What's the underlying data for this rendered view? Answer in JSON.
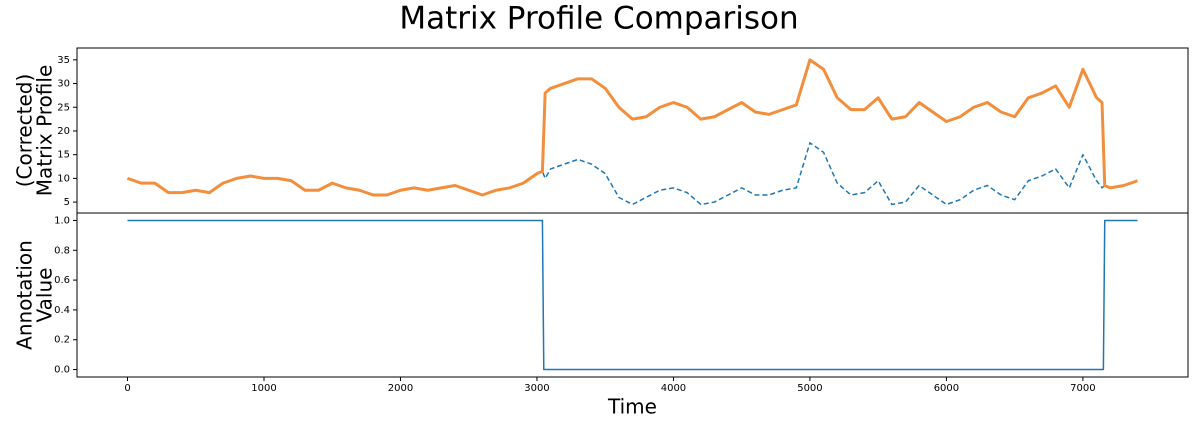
{
  "chart_data": [
    {
      "type": "line",
      "title": "Matrix Profile Comparison",
      "ylabel": [
        "(Corrected)",
        "Matrix Profile"
      ],
      "xlim": [
        -370,
        7770
      ],
      "ylim": [
        2.7,
        37.5
      ],
      "yticks": [
        5,
        10,
        15,
        20,
        25,
        30,
        35
      ],
      "x": [
        0,
        100,
        200,
        300,
        400,
        500,
        600,
        700,
        800,
        900,
        1000,
        1100,
        1200,
        1300,
        1400,
        1500,
        1600,
        1700,
        1800,
        1900,
        2000,
        2100,
        2200,
        2300,
        2400,
        2500,
        2600,
        2700,
        2800,
        2900,
        3000,
        3040,
        3060,
        3100,
        3200,
        3300,
        3400,
        3500,
        3600,
        3700,
        3800,
        3900,
        4000,
        4100,
        4200,
        4300,
        4400,
        4500,
        4600,
        4700,
        4800,
        4900,
        5000,
        5100,
        5200,
        5300,
        5400,
        5500,
        5600,
        5700,
        5800,
        5900,
        6000,
        6100,
        6200,
        6300,
        6400,
        6500,
        6600,
        6700,
        6800,
        6900,
        7000,
        7100,
        7140,
        7160,
        7200,
        7300,
        7400
      ],
      "series": [
        {
          "color": "#1f77b4",
          "linestyle": "dashed",
          "linewidth": 1.5,
          "values": [
            10,
            9,
            9,
            7,
            7,
            7.5,
            7,
            9,
            10,
            10.5,
            10,
            10,
            9.5,
            7.5,
            7.5,
            9,
            8,
            7.5,
            6.5,
            6.5,
            7.5,
            8,
            7.5,
            8,
            8.5,
            7.5,
            6.5,
            7.5,
            8,
            9,
            11,
            11.5,
            10,
            12,
            13,
            14,
            13,
            11,
            6,
            4.5,
            6,
            7.5,
            8,
            7,
            4.5,
            5,
            6.5,
            8,
            6.5,
            6.5,
            7.5,
            8,
            17.5,
            15.5,
            9,
            6.5,
            7,
            9.5,
            4.5,
            5,
            8.5,
            6.5,
            4.5,
            5.5,
            7.5,
            8.5,
            6.5,
            5.5,
            9.5,
            10.5,
            12,
            8,
            15,
            9.5,
            8,
            8.5,
            8,
            8.5,
            9.5
          ]
        },
        {
          "color": "#f28e3c",
          "linestyle": "solid",
          "linewidth": 3,
          "values": [
            10,
            9,
            9,
            7,
            7,
            7.5,
            7,
            9,
            10,
            10.5,
            10,
            10,
            9.5,
            7.5,
            7.5,
            9,
            8,
            7.5,
            6.5,
            6.5,
            7.5,
            8,
            7.5,
            8,
            8.5,
            7.5,
            6.5,
            7.5,
            8,
            9,
            11,
            11.5,
            28,
            29,
            30,
            31,
            31,
            29,
            25,
            22.5,
            23,
            25,
            26,
            25,
            22.5,
            23,
            24.5,
            26,
            24,
            23.5,
            24.5,
            25.5,
            35,
            33,
            27,
            24.5,
            24.5,
            27,
            22.5,
            23,
            26,
            24,
            22,
            23,
            25,
            26,
            24,
            23,
            27,
            28,
            29.5,
            25,
            33,
            27,
            26,
            8.5,
            8,
            8.5,
            9.5
          ]
        }
      ]
    },
    {
      "type": "line",
      "ylabel": [
        "Annotation",
        "Value"
      ],
      "xlabel": "Time",
      "xlim": [
        -370,
        7770
      ],
      "ylim": [
        -0.05,
        1.05
      ],
      "xticks": [
        0,
        1000,
        2000,
        3000,
        4000,
        5000,
        6000,
        7000
      ],
      "yticks": [
        {
          "value": 0,
          "label": "0.0"
        },
        {
          "value": 0.2,
          "label": "0.2"
        },
        {
          "value": 0.4,
          "label": "0.4"
        },
        {
          "value": 0.6,
          "label": "0.6"
        },
        {
          "value": 0.8,
          "label": "0.8"
        },
        {
          "value": 1,
          "label": "1.0"
        }
      ],
      "x": [
        0,
        3040,
        3050,
        7150,
        7160,
        7400
      ],
      "series": [
        {
          "color": "#1f77b4",
          "linestyle": "solid",
          "linewidth": 1.5,
          "values": [
            1,
            1,
            0,
            0,
            1,
            1
          ]
        }
      ]
    }
  ]
}
